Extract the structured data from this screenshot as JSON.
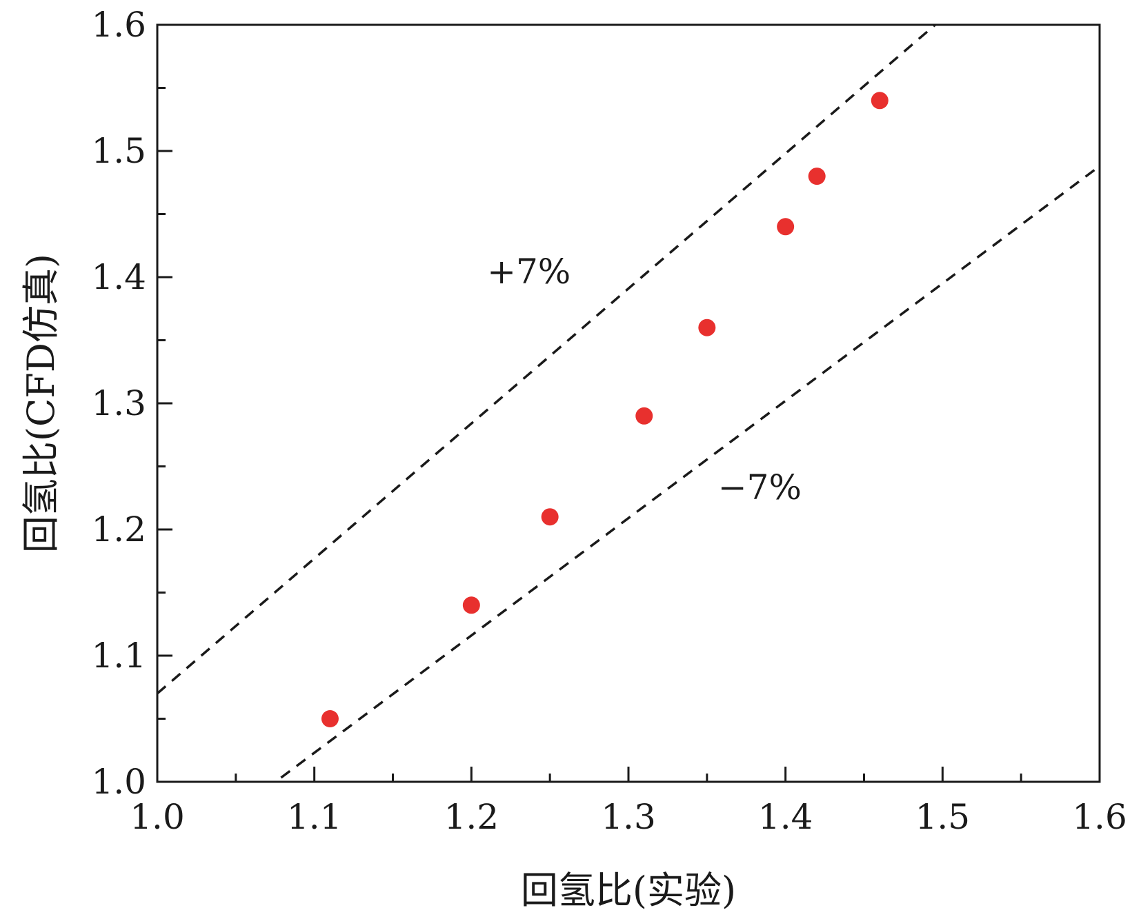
{
  "chart_data": {
    "type": "scatter",
    "title": "",
    "xlabel": "回氢比(实验)",
    "ylabel": "回氢比(CFD仿真)",
    "xlim": [
      1.0,
      1.6
    ],
    "ylim": [
      1.0,
      1.6
    ],
    "x_ticks": [
      "1.0",
      "1.1",
      "1.2",
      "1.3",
      "1.4",
      "1.5",
      "1.6"
    ],
    "y_ticks": [
      "1.0",
      "1.1",
      "1.2",
      "1.3",
      "1.4",
      "1.5",
      "1.6"
    ],
    "x_minor_step": 0.05,
    "y_minor_step": 0.05,
    "grid": false,
    "series": [
      {
        "marker_color": "#e8302e",
        "points": [
          {
            "x": 1.11,
            "y": 1.05
          },
          {
            "x": 1.2,
            "y": 1.14
          },
          {
            "x": 1.25,
            "y": 1.21
          },
          {
            "x": 1.31,
            "y": 1.29
          },
          {
            "x": 1.35,
            "y": 1.36
          },
          {
            "x": 1.4,
            "y": 1.44
          },
          {
            "x": 1.42,
            "y": 1.48
          },
          {
            "x": 1.46,
            "y": 1.54
          }
        ]
      }
    ],
    "reference_lines": [
      {
        "slope": 1.07,
        "style": "dashed",
        "color": "#1a1a1a"
      },
      {
        "slope": 0.93,
        "style": "dashed",
        "color": "#1a1a1a"
      }
    ],
    "annotations": [
      {
        "text": "+7%",
        "x": 1.21,
        "y": 1.395
      },
      {
        "text": "−7%",
        "x": 1.357,
        "y": 1.224
      }
    ]
  }
}
